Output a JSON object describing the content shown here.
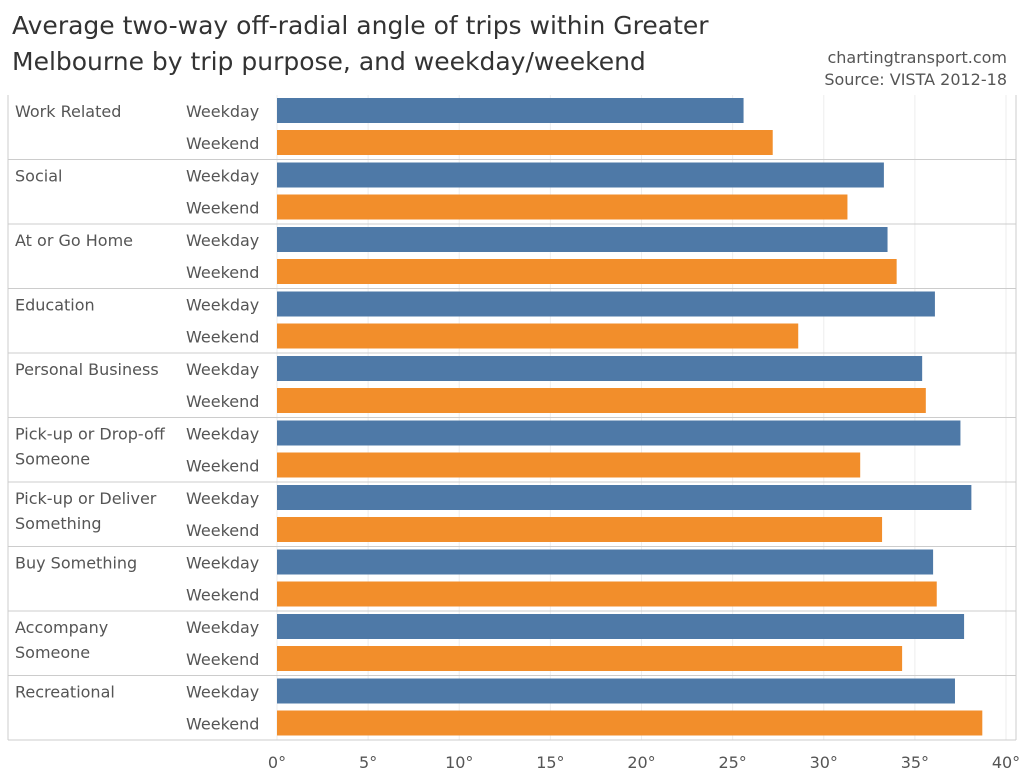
{
  "title": "Average two-way off-radial angle of trips within Greater Melbourne by trip purpose, and weekday/weekend",
  "credit": "chartingtransport.com",
  "source": "Source: VISTA 2012-18",
  "chart_data": {
    "type": "bar",
    "orientation": "horizontal",
    "title": "Average two-way off-radial angle of trips within Greater Melbourne by trip purpose, and weekday/weekend",
    "xlabel": "",
    "ylabel": "",
    "xlim": [
      0,
      40
    ],
    "ticks": [
      0,
      5,
      10,
      15,
      20,
      25,
      30,
      35,
      40
    ],
    "tick_suffix": "°",
    "grid": true,
    "categories": [
      [
        "Work Related"
      ],
      [
        "Social"
      ],
      [
        "At or Go Home"
      ],
      [
        "Education"
      ],
      [
        "Personal Business"
      ],
      [
        "Pick-up or Drop-off",
        "Someone"
      ],
      [
        "Pick-up or Deliver",
        "Something"
      ],
      [
        "Buy Something"
      ],
      [
        "Accompany",
        "Someone"
      ],
      [
        "Recreational"
      ]
    ],
    "series": [
      {
        "name": "Weekday",
        "color": "#4e79a7",
        "values": [
          25.6,
          33.3,
          33.5,
          36.1,
          35.4,
          37.5,
          38.1,
          36.0,
          37.7,
          37.2
        ]
      },
      {
        "name": "Weekend",
        "color": "#f28e2b",
        "values": [
          27.2,
          31.3,
          34.0,
          28.6,
          35.6,
          32.0,
          33.2,
          36.2,
          34.3,
          38.7
        ]
      }
    ]
  }
}
